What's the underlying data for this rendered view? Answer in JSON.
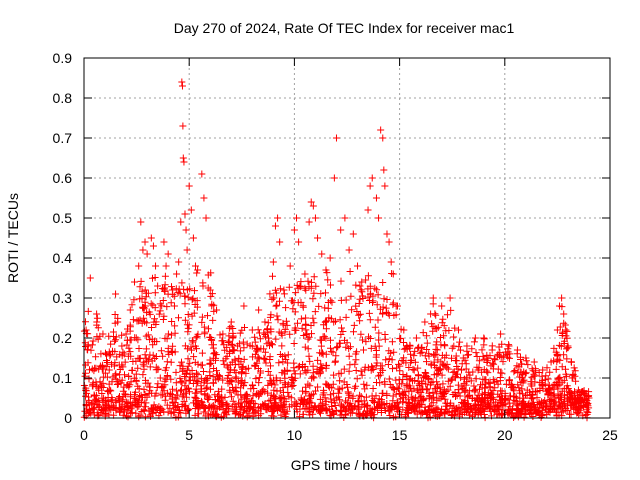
{
  "chart_data": {
    "type": "scatter",
    "title": "Day 270 of 2024, Rate Of TEC Index for receiver mac1",
    "xlabel": "GPS time / hours",
    "ylabel": "ROTI / TECUs",
    "xlim": [
      0,
      25
    ],
    "ylim": [
      0,
      0.9
    ],
    "xticks": [
      "0",
      "5",
      "10",
      "15",
      "20",
      "25"
    ],
    "yticks": [
      "0",
      "0.1",
      "0.2",
      "0.3",
      "0.4",
      "0.5",
      "0.6",
      "0.7",
      "0.8",
      "0.9"
    ],
    "grid": true,
    "marker": "+",
    "color": "#ff0000",
    "series": [
      {
        "points": [
          [
            0.1,
            0.22
          ],
          [
            0.2,
            0.18
          ],
          [
            0.3,
            0.35
          ],
          [
            0.4,
            0.08
          ],
          [
            0.6,
            0.26
          ],
          [
            0.9,
            0.21
          ],
          [
            1.2,
            0.12
          ],
          [
            1.5,
            0.31
          ],
          [
            1.6,
            0.24
          ],
          [
            1.8,
            0.18
          ],
          [
            2.0,
            0.21
          ],
          [
            2.2,
            0.27
          ],
          [
            2.4,
            0.34
          ],
          [
            2.6,
            0.38
          ],
          [
            2.7,
            0.49
          ],
          [
            2.8,
            0.42
          ],
          [
            2.9,
            0.44
          ],
          [
            3.0,
            0.41
          ],
          [
            3.2,
            0.45
          ],
          [
            3.3,
            0.43
          ],
          [
            3.4,
            0.38
          ],
          [
            3.5,
            0.33
          ],
          [
            3.8,
            0.44
          ],
          [
            3.9,
            0.38
          ],
          [
            4.0,
            0.41
          ],
          [
            4.2,
            0.32
          ],
          [
            4.3,
            0.28
          ],
          [
            4.4,
            0.36
          ],
          [
            4.5,
            0.39
          ],
          [
            4.6,
            0.49
          ],
          [
            4.65,
            0.84
          ],
          [
            4.68,
            0.83
          ],
          [
            4.7,
            0.73
          ],
          [
            4.72,
            0.65
          ],
          [
            4.75,
            0.64
          ],
          [
            4.8,
            0.51
          ],
          [
            4.85,
            0.47
          ],
          [
            4.9,
            0.42
          ],
          [
            5.0,
            0.58
          ],
          [
            5.1,
            0.52
          ],
          [
            5.2,
            0.45
          ],
          [
            5.3,
            0.38
          ],
          [
            5.4,
            0.37
          ],
          [
            5.6,
            0.61
          ],
          [
            5.7,
            0.55
          ],
          [
            5.8,
            0.5
          ],
          [
            6.0,
            0.32
          ],
          [
            6.3,
            0.27
          ],
          [
            6.6,
            0.21
          ],
          [
            7.0,
            0.24
          ],
          [
            7.3,
            0.18
          ],
          [
            7.6,
            0.28
          ],
          [
            8.0,
            0.22
          ],
          [
            8.3,
            0.27
          ],
          [
            8.6,
            0.24
          ],
          [
            9.0,
            0.39
          ],
          [
            9.1,
            0.48
          ],
          [
            9.2,
            0.5
          ],
          [
            9.3,
            0.44
          ],
          [
            9.5,
            0.32
          ],
          [
            9.8,
            0.38
          ],
          [
            10.0,
            0.47
          ],
          [
            10.1,
            0.5
          ],
          [
            10.2,
            0.44
          ],
          [
            10.5,
            0.36
          ],
          [
            10.7,
            0.49
          ],
          [
            10.8,
            0.54
          ],
          [
            10.9,
            0.53
          ],
          [
            11.0,
            0.5
          ],
          [
            11.1,
            0.45
          ],
          [
            11.3,
            0.41
          ],
          [
            11.5,
            0.37
          ],
          [
            11.7,
            0.4
          ],
          [
            11.9,
            0.6
          ],
          [
            12.0,
            0.7
          ],
          [
            12.2,
            0.47
          ],
          [
            12.4,
            0.5
          ],
          [
            12.6,
            0.42
          ],
          [
            12.8,
            0.46
          ],
          [
            13.0,
            0.38
          ],
          [
            13.2,
            0.34
          ],
          [
            13.5,
            0.52
          ],
          [
            13.6,
            0.58
          ],
          [
            13.7,
            0.6
          ],
          [
            13.9,
            0.55
          ],
          [
            14.0,
            0.5
          ],
          [
            14.1,
            0.72
          ],
          [
            14.2,
            0.7
          ],
          [
            14.25,
            0.62
          ],
          [
            14.3,
            0.58
          ],
          [
            14.4,
            0.46
          ],
          [
            14.5,
            0.44
          ],
          [
            14.6,
            0.39
          ],
          [
            14.7,
            0.36
          ],
          [
            14.9,
            0.28
          ],
          [
            15.2,
            0.22
          ],
          [
            15.5,
            0.18
          ],
          [
            15.8,
            0.2
          ],
          [
            16.2,
            0.24
          ],
          [
            16.6,
            0.3
          ],
          [
            17.0,
            0.28
          ],
          [
            17.4,
            0.3
          ],
          [
            17.8,
            0.22
          ],
          [
            18.2,
            0.18
          ],
          [
            18.6,
            0.2
          ],
          [
            19.0,
            0.2
          ],
          [
            19.4,
            0.17
          ],
          [
            19.8,
            0.21
          ],
          [
            20.2,
            0.18
          ],
          [
            20.6,
            0.17
          ],
          [
            21.0,
            0.15
          ],
          [
            21.4,
            0.14
          ],
          [
            21.8,
            0.12
          ],
          [
            22.2,
            0.14
          ],
          [
            22.5,
            0.22
          ],
          [
            22.6,
            0.28
          ],
          [
            22.7,
            0.3
          ],
          [
            22.8,
            0.26
          ],
          [
            22.9,
            0.22
          ],
          [
            23.0,
            0.18
          ],
          [
            23.2,
            0.1
          ],
          [
            23.5,
            0.07
          ],
          [
            23.8,
            0.06
          ],
          [
            24.0,
            0.05
          ]
        ]
      }
    ]
  }
}
